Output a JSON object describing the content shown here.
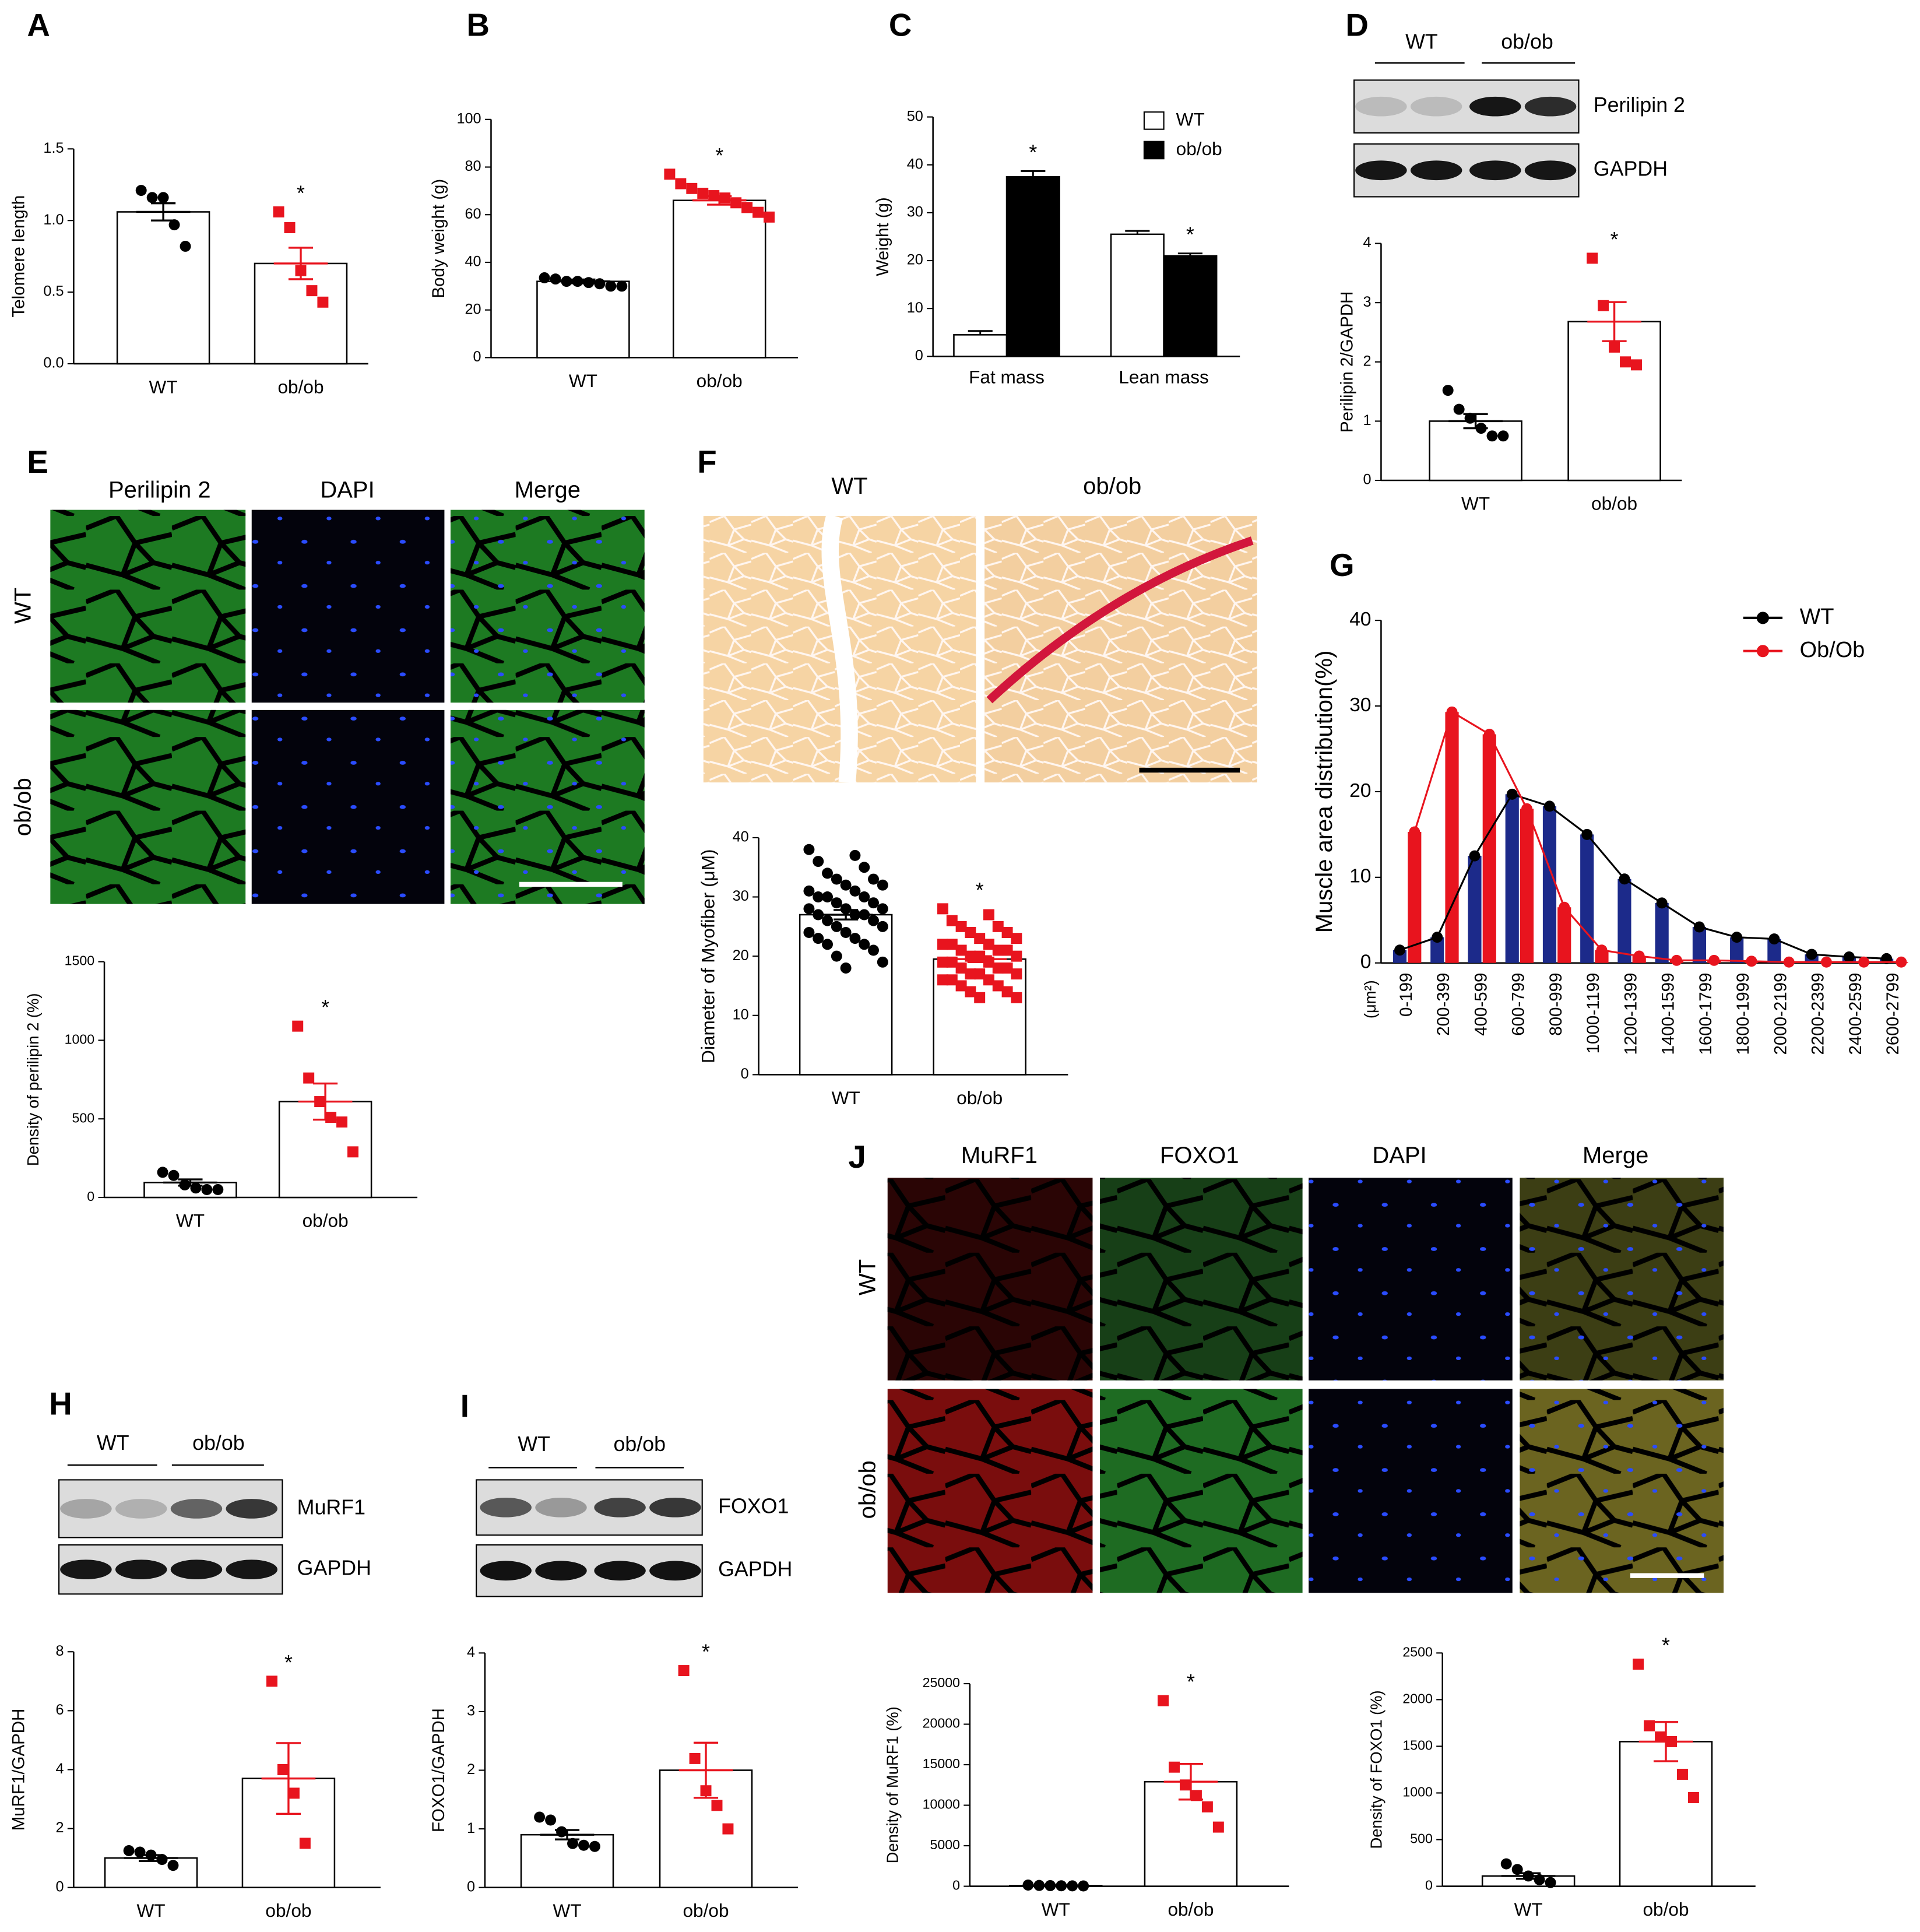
{
  "chart_data": [
    {
      "type": "bar",
      "ylabel": "Telomere length",
      "categories": [
        "WT",
        "ob/ob"
      ],
      "values": [
        1.06,
        0.7
      ],
      "errors": [
        0.06,
        0.11
      ],
      "points": [
        [
          1.21,
          1.16,
          1.16,
          0.97,
          0.82
        ],
        [
          1.06,
          0.95,
          0.65,
          0.51,
          0.43
        ]
      ],
      "point_colors": [
        "#000000",
        "#e8141e"
      ],
      "point_markers": [
        "circle",
        "square"
      ],
      "bar_color": "#ffffff",
      "significance": [
        null,
        "*"
      ],
      "ylim": [
        0,
        1.5
      ],
      "yticks": [
        {
          "value": 0,
          "label": "0.0"
        },
        0.5,
        {
          "value": 1,
          "label": "1.0"
        },
        1.5
      ]
    },
    {
      "type": "bar",
      "ylabel": "Body weight (g)",
      "categories": [
        "WT",
        "ob/ob"
      ],
      "values": [
        32,
        66
      ],
      "errors": [
        0.8,
        1.8
      ],
      "points": [
        [
          33.5,
          33,
          32,
          32,
          31.5,
          31,
          30,
          30
        ],
        [
          77,
          73,
          71,
          69,
          68,
          67,
          65,
          63,
          61,
          59
        ]
      ],
      "point_colors": [
        "#000000",
        "#e8141e"
      ],
      "point_markers": [
        "circle",
        "square"
      ],
      "bar_color": "#ffffff",
      "significance": [
        null,
        "*"
      ],
      "ylim": [
        0,
        100
      ],
      "yticks": [
        0,
        20,
        40,
        60,
        80,
        100
      ]
    },
    {
      "type": "grouped_bar",
      "ylabel": "Weight (g)",
      "categories": [
        "Fat mass",
        "Lean mass"
      ],
      "series": [
        {
          "name": "WT",
          "color": "#ffffff",
          "values": [
            4.5,
            25.5
          ],
          "errors": [
            0.8,
            0.7
          ],
          "significance": [
            null,
            null
          ]
        },
        {
          "name": "ob/ob",
          "color": "#000000",
          "values": [
            37.5,
            21
          ],
          "errors": [
            1.2,
            0.5
          ],
          "significance": [
            "*",
            "*"
          ]
        }
      ],
      "ylim": [
        0,
        50
      ],
      "yticks": [
        0,
        10,
        20,
        30,
        40,
        50
      ]
    },
    {
      "type": "bar",
      "ylabel": "Perilipin 2/GAPDH",
      "categories": [
        "WT",
        "ob/ob"
      ],
      "values": [
        1.0,
        2.68
      ],
      "errors": [
        0.12,
        0.33
      ],
      "points": [
        [
          1.52,
          1.2,
          1.05,
          0.88,
          0.75,
          0.75
        ],
        [
          3.75,
          2.95,
          2.25,
          2.0,
          1.95
        ]
      ],
      "point_colors": [
        "#000000",
        "#e8141e"
      ],
      "point_markers": [
        "circle",
        "square"
      ],
      "bar_color": "#ffffff",
      "significance": [
        null,
        "*"
      ],
      "ylim": [
        0,
        4
      ],
      "yticks": [
        0,
        1,
        2,
        3,
        4
      ]
    },
    {
      "type": "bar",
      "ylabel": "Density of perilipin 2 (%)",
      "categories": [
        "WT",
        "ob/ob"
      ],
      "values": [
        95,
        610
      ],
      "errors": [
        20,
        115
      ],
      "points": [
        [
          160,
          140,
          80,
          60,
          50,
          50
        ],
        [
          1090,
          760,
          610,
          510,
          480,
          290
        ]
      ],
      "point_colors": [
        "#000000",
        "#e8141e"
      ],
      "point_markers": [
        "circle",
        "square"
      ],
      "bar_color": "#ffffff",
      "significance": [
        null,
        "*"
      ],
      "ylim": [
        0,
        1500
      ],
      "yticks": [
        0,
        500,
        1000,
        1500
      ]
    },
    {
      "type": "bar",
      "ylabel": "Diameter of Myofiber (μM)",
      "categories": [
        "WT",
        "ob/ob"
      ],
      "values": [
        27,
        19.5
      ],
      "errors": [
        0.8,
        0.5
      ],
      "points": [
        [
          38,
          37,
          36,
          35,
          34,
          33,
          33,
          32,
          32,
          31,
          31,
          30,
          30,
          30,
          29,
          29,
          28,
          28,
          28,
          27,
          27,
          27,
          26,
          26,
          25,
          25,
          24,
          24,
          23,
          23,
          22,
          22,
          21,
          20,
          19,
          18
        ],
        [
          28,
          27,
          26,
          25,
          25,
          24,
          24,
          23,
          23,
          22,
          22,
          22,
          21,
          21,
          21,
          20,
          20,
          20,
          19,
          19,
          19,
          18,
          18,
          18,
          17,
          17,
          17,
          16,
          16,
          16,
          15,
          15,
          14,
          14,
          13,
          13
        ]
      ],
      "point_colors": [
        "#000000",
        "#e8141e"
      ],
      "point_markers": [
        "circle",
        "square"
      ],
      "bar_color": "#ffffff",
      "significance": [
        null,
        "*"
      ],
      "ylim": [
        0,
        40
      ],
      "yticks": [
        0,
        10,
        20,
        30,
        40
      ]
    },
    {
      "type": "bar_line",
      "ylabel": "Muscle area distribution(%)",
      "x_unit": "(μm²)",
      "categories": [
        "0-199",
        "200-399",
        "400-599",
        "600-799",
        "800-999",
        "1000-1199",
        "1200-1399",
        "1400-1599",
        "1600-1799",
        "1800-1999",
        "2000-2199",
        "2200-2399",
        "2400-2599",
        "2600-2799"
      ],
      "series": [
        {
          "name": "WT",
          "color": "#000000",
          "bar_color": "#1c2a8a",
          "values": [
            1.5,
            3,
            12.5,
            19.7,
            18.3,
            15,
            9.8,
            7,
            4.2,
            3,
            2.8,
            1,
            0.7,
            0.5
          ]
        },
        {
          "name": "Ob/Ob",
          "color": "#e8141e",
          "bar_color": "#e8141e",
          "values": [
            15.3,
            29.3,
            26.7,
            18,
            6.5,
            1.5,
            0.8,
            0.3,
            0.3,
            0.2,
            0.1,
            0.1,
            0.1,
            0.1
          ]
        }
      ],
      "ylim": [
        0,
        40
      ],
      "yticks": [
        0,
        10,
        20,
        30,
        40
      ],
      "legend": "top-right"
    },
    {
      "type": "bar",
      "ylabel": "MuRF1/GAPDH",
      "categories": [
        "WT",
        "ob/ob"
      ],
      "values": [
        1.0,
        3.7
      ],
      "errors": [
        0.1,
        1.2
      ],
      "points": [
        [
          1.25,
          1.2,
          1.1,
          0.95,
          0.75
        ],
        [
          7.0,
          4.0,
          3.2,
          1.5
        ]
      ],
      "point_colors": [
        "#000000",
        "#e8141e"
      ],
      "point_markers": [
        "circle",
        "square"
      ],
      "bar_color": "#ffffff",
      "significance": [
        null,
        "*"
      ],
      "ylim": [
        0,
        8
      ],
      "yticks": [
        0,
        2,
        4,
        6,
        8
      ]
    },
    {
      "type": "bar",
      "ylabel": "FOXO1/GAPDH",
      "categories": [
        "WT",
        "ob/ob"
      ],
      "values": [
        0.9,
        2.0
      ],
      "errors": [
        0.08,
        0.47
      ],
      "points": [
        [
          1.2,
          1.15,
          0.95,
          0.75,
          0.72,
          0.7
        ],
        [
          3.7,
          2.2,
          1.65,
          1.4,
          1.0
        ]
      ],
      "point_colors": [
        "#000000",
        "#e8141e"
      ],
      "point_markers": [
        "circle",
        "square"
      ],
      "bar_color": "#ffffff",
      "significance": [
        null,
        "*"
      ],
      "ylim": [
        0,
        4
      ],
      "yticks": [
        0,
        1,
        2,
        3,
        4
      ]
    },
    {
      "type": "bar",
      "ylabel": "Density of MuRF1 (%)",
      "categories": [
        "WT",
        "ob/ob"
      ],
      "values": [
        80,
        12900
      ],
      "errors": [
        40,
        2200
      ],
      "points": [
        [
          150,
          100,
          80,
          60,
          50,
          40
        ],
        [
          22900,
          14700,
          12500,
          11200,
          9800,
          7300
        ]
      ],
      "point_colors": [
        "#000000",
        "#e8141e"
      ],
      "point_markers": [
        "circle",
        "square"
      ],
      "bar_color": "#ffffff",
      "significance": [
        null,
        "*"
      ],
      "ylim": [
        0,
        25000
      ],
      "yticks": [
        0,
        5000,
        10000,
        15000,
        20000,
        25000
      ]
    },
    {
      "type": "bar",
      "ylabel": "Density of FOXO1 (%)",
      "categories": [
        "WT",
        "ob/ob"
      ],
      "values": [
        110,
        1550
      ],
      "errors": [
        30,
        210
      ],
      "points": [
        [
          240,
          180,
          110,
          70,
          40
        ],
        [
          2380,
          1720,
          1600,
          1550,
          1200,
          950
        ]
      ],
      "point_colors": [
        "#000000",
        "#e8141e"
      ],
      "point_markers": [
        "circle",
        "square"
      ],
      "bar_color": "#ffffff",
      "significance": [
        null,
        "*"
      ],
      "ylim": [
        0,
        2500
      ],
      "yticks": [
        0,
        500,
        1000,
        1500,
        2000,
        2500
      ]
    }
  ],
  "panel_letters": [
    "A",
    "B",
    "C",
    "D",
    "E",
    "F",
    "G",
    "H",
    "I",
    "J"
  ],
  "panel_D_blot": {
    "groups": [
      "WT",
      "ob/ob"
    ],
    "bands": [
      "Perilipin 2",
      "GAPDH"
    ]
  },
  "panel_E_images": {
    "columns": [
      "Perilipin 2",
      "DAPI",
      "Merge"
    ],
    "rows": [
      "WT",
      "ob/ob"
    ]
  },
  "panel_F_images": {
    "columns": [
      "WT",
      "ob/ob"
    ]
  },
  "panel_H_blot": {
    "groups": [
      "WT",
      "ob/ob"
    ],
    "bands": [
      "MuRF1",
      "GAPDH"
    ]
  },
  "panel_I_blot": {
    "groups": [
      "WT",
      "ob/ob"
    ],
    "bands": [
      "FOXO1",
      "GAPDH"
    ]
  },
  "panel_J_images": {
    "columns": [
      "MuRF1",
      "FOXO1",
      "DAPI",
      "Merge"
    ],
    "rows": [
      "WT",
      "ob/ob"
    ]
  }
}
